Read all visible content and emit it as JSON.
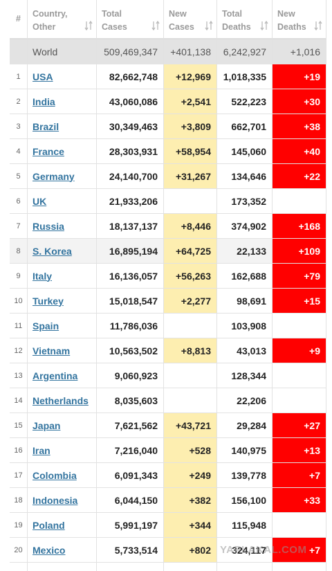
{
  "table": {
    "header": [
      [
        "#"
      ],
      [
        "Country,",
        "Other"
      ],
      [
        "Total",
        "Cases"
      ],
      [
        "New",
        "Cases"
      ],
      [
        "Total",
        "Deaths"
      ],
      [
        "New",
        "Deaths"
      ]
    ],
    "world": [
      "World",
      "509,469,347",
      "+401,138",
      "6,242,927",
      "+1,016"
    ],
    "rows": [
      [
        "1",
        "USA",
        "82,662,748",
        "+12,969",
        "1,018,335",
        "+19"
      ],
      [
        "2",
        "India",
        "43,060,086",
        "+2,541",
        "522,223",
        "+30"
      ],
      [
        "3",
        "Brazil",
        "30,349,463",
        "+3,809",
        "662,701",
        "+38"
      ],
      [
        "4",
        "France",
        "28,303,931",
        "+58,954",
        "145,060",
        "+40"
      ],
      [
        "5",
        "Germany",
        "24,140,700",
        "+31,267",
        "134,646",
        "+22"
      ],
      [
        "6",
        "UK",
        "21,933,206",
        null,
        "173,352",
        null
      ],
      [
        "7",
        "Russia",
        "18,137,137",
        "+8,446",
        "374,902",
        "+168"
      ],
      [
        "8",
        "S. Korea",
        "16,895,194",
        "+64,725",
        "22,133",
        "+109"
      ],
      [
        "9",
        "Italy",
        "16,136,057",
        "+56,263",
        "162,688",
        "+79"
      ],
      [
        "10",
        "Turkey",
        "15,018,547",
        "+2,277",
        "98,691",
        "+15"
      ],
      [
        "11",
        "Spain",
        "11,786,036",
        null,
        "103,908",
        null
      ],
      [
        "12",
        "Vietnam",
        "10,563,502",
        "+8,813",
        "43,013",
        "+9"
      ],
      [
        "13",
        "Argentina",
        "9,060,923",
        null,
        "128,344",
        null
      ],
      [
        "14",
        "Netherlands",
        "8,035,603",
        null,
        "22,206",
        null
      ],
      [
        "15",
        "Japan",
        "7,621,562",
        "+43,721",
        "29,284",
        "+27"
      ],
      [
        "16",
        "Iran",
        "7,216,040",
        "+528",
        "140,975",
        "+13"
      ],
      [
        "17",
        "Colombia",
        "6,091,343",
        "+249",
        "139,778",
        "+7"
      ],
      [
        "18",
        "Indonesia",
        "6,044,150",
        "+382",
        "156,100",
        "+33"
      ],
      [
        "19",
        "Poland",
        "5,991,197",
        "+344",
        "115,948",
        null
      ],
      [
        "20",
        "Mexico",
        "5,733,514",
        "+802",
        "324,117",
        "+7"
      ]
    ]
  },
  "watermark": "YAPLAKAL.COM"
}
